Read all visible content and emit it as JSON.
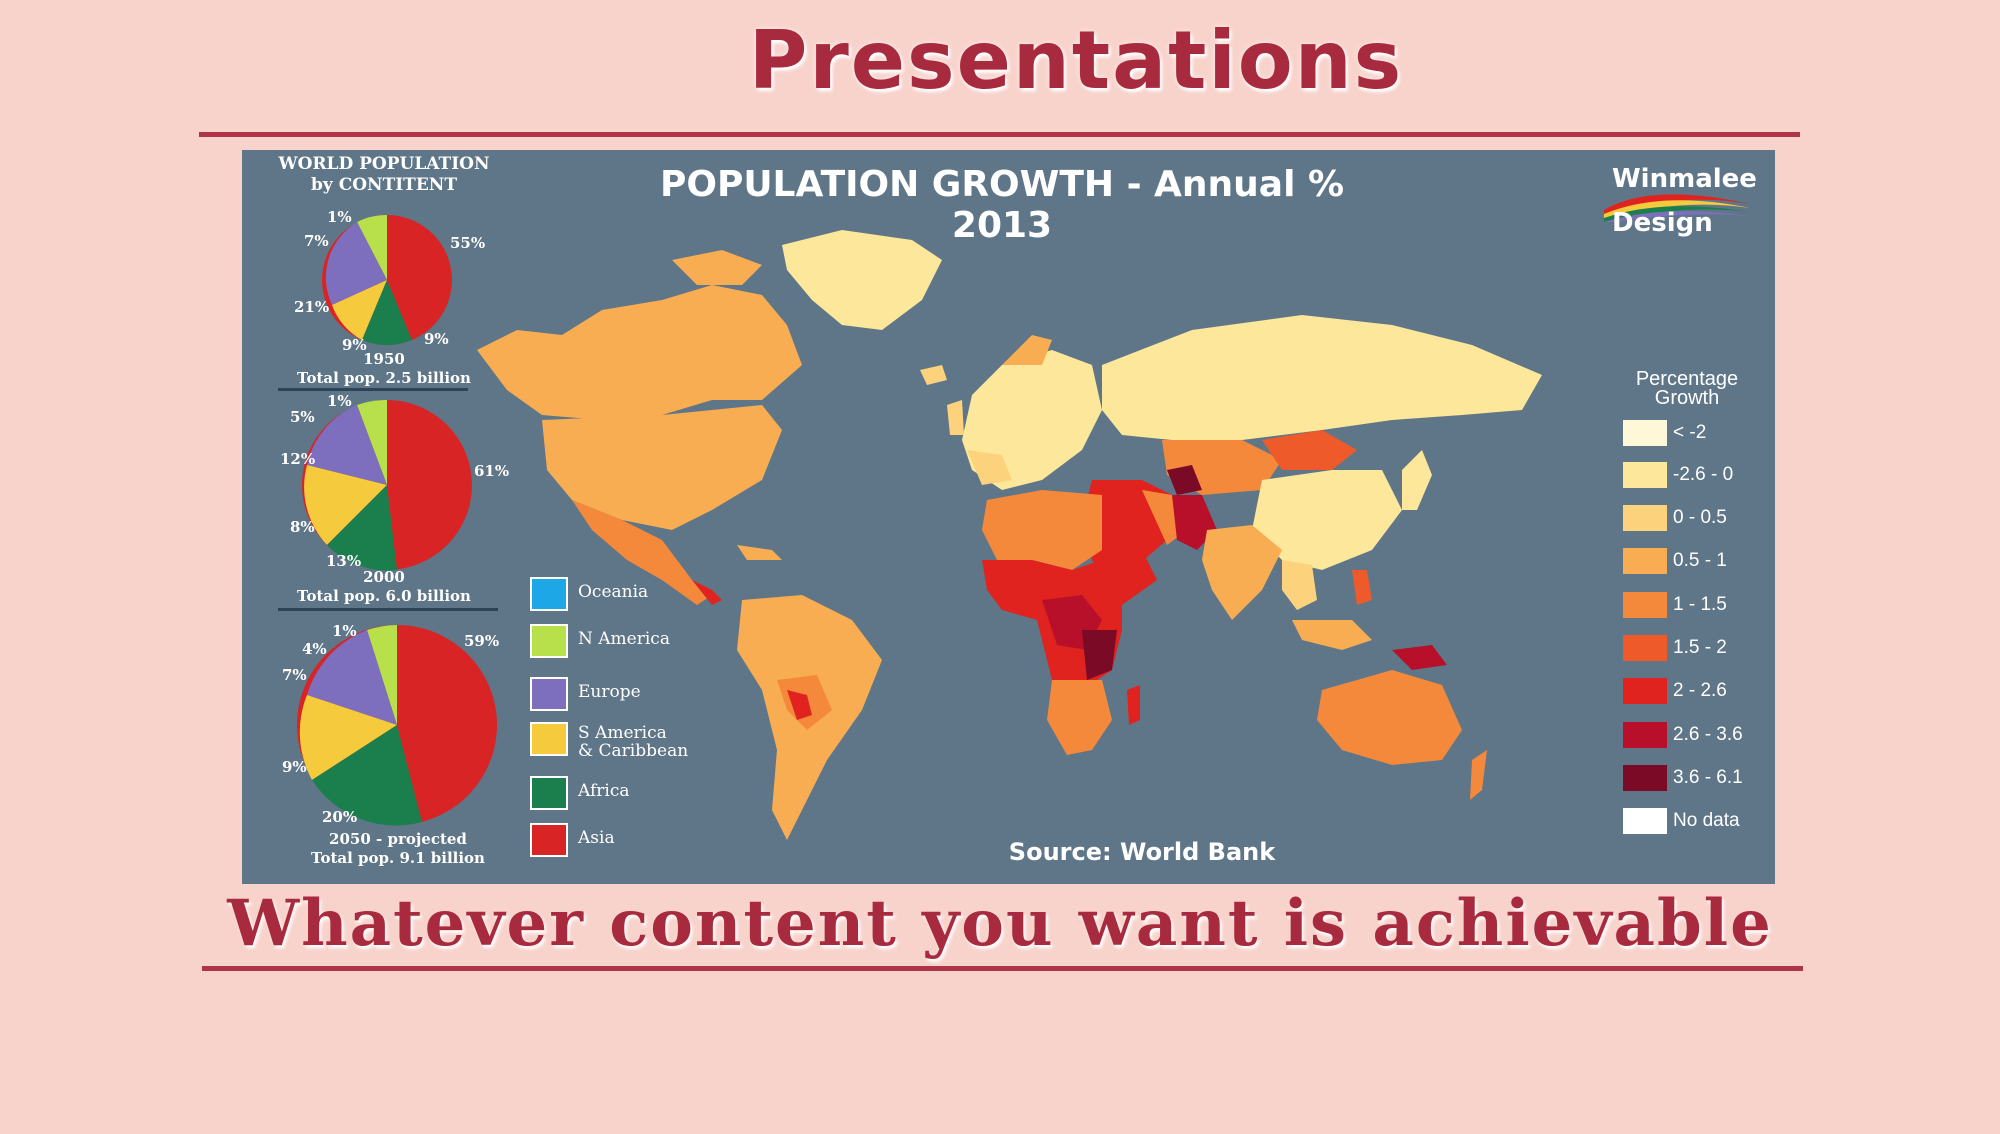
{
  "page": {
    "title": "Presentations",
    "tagline": "Whatever content you want is achievable"
  },
  "infographic": {
    "title": "POPULATION GROWTH - Annual % 2013",
    "source": "Source: World Bank",
    "brand": {
      "line1": "Winmalee",
      "line2": "Design"
    },
    "pie_heading": {
      "line1": "WORLD POPULATION",
      "line2": "by CONTITENT"
    },
    "pies": [
      {
        "caption1": "1950",
        "caption2": "Total pop. 2.5 billion",
        "labels": [
          "1%",
          "7%",
          "21%",
          "9%",
          "9%",
          "55%"
        ]
      },
      {
        "caption1": "2000",
        "caption2": "Total pop. 6.0 billion",
        "labels": [
          "1%",
          "5%",
          "12%",
          "8%",
          "13%",
          "61%"
        ]
      },
      {
        "caption1": "2050 - projected",
        "caption2": "Total pop. 9.1 billion",
        "labels": [
          "1%",
          "4%",
          "7%",
          "9%",
          "20%",
          "59%"
        ]
      }
    ],
    "continent_legend": [
      {
        "label": "Oceania",
        "color": "#1ea7e6"
      },
      {
        "label": "N America",
        "color": "#b7e04a"
      },
      {
        "label": "Europe",
        "color": "#7d6fbd"
      },
      {
        "label": "S America",
        "label2": "& Caribbean",
        "color": "#f5cb3d"
      },
      {
        "label": "Africa",
        "color": "#1a7e4d"
      },
      {
        "label": "Asia",
        "color": "#d82424"
      }
    ],
    "growth_legend": {
      "title1": "Percentage",
      "title2": "Growth",
      "items": [
        {
          "label": "< -2",
          "color": "#fff8d8"
        },
        {
          "label": "-2.6 - 0",
          "color": "#fde79a"
        },
        {
          "label": "0 - 0.5",
          "color": "#fcd37c"
        },
        {
          "label": "0.5 - 1",
          "color": "#f9ad52"
        },
        {
          "label": "1 - 1.5",
          "color": "#f5893b"
        },
        {
          "label": "1.5 - 2",
          "color": "#ef5a2a"
        },
        {
          "label": "2 - 2.6",
          "color": "#e0231f"
        },
        {
          "label": "2.6 - 3.6",
          "color": "#b8102a"
        },
        {
          "label": "3.6 - 6.1",
          "color": "#7a0a26"
        },
        {
          "label": "No data",
          "color": "#ffffff"
        }
      ]
    }
  }
}
